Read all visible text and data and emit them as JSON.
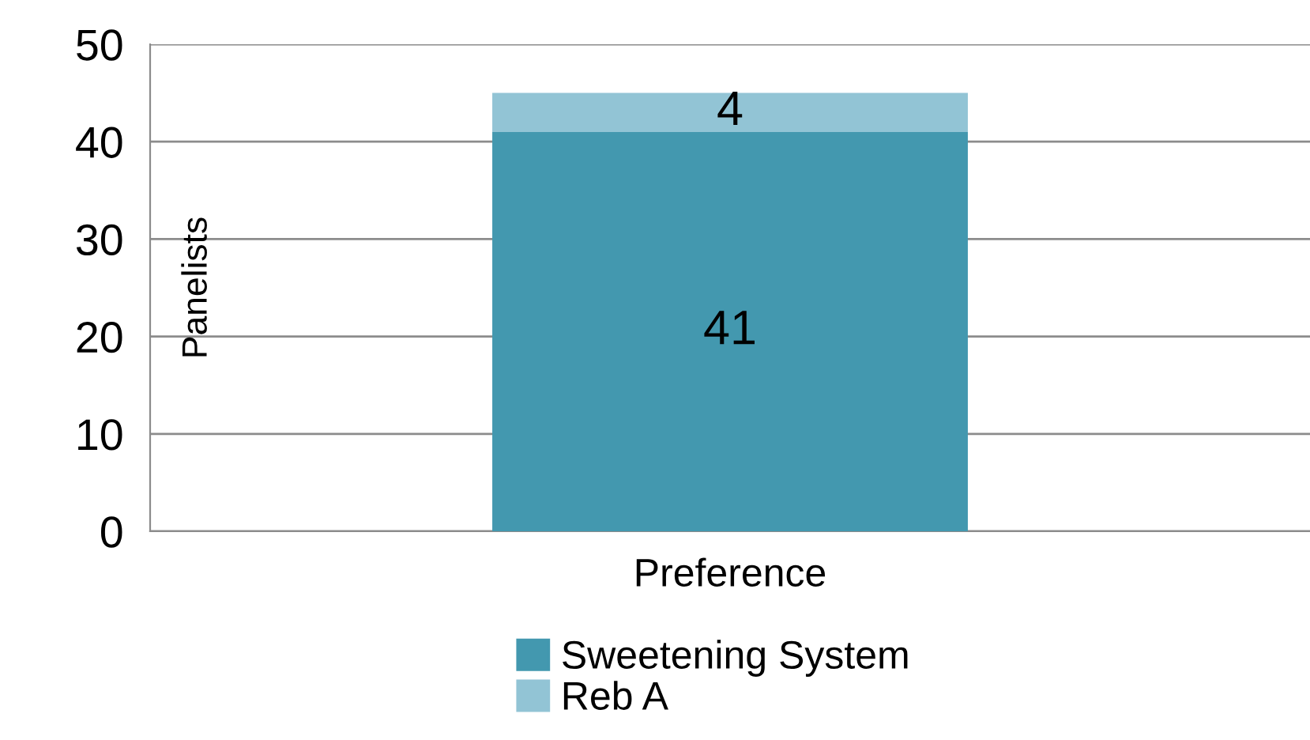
{
  "chart_data": {
    "type": "bar",
    "stacked": true,
    "categories": [
      "Preference"
    ],
    "ylabel": "Panelists",
    "series": [
      {
        "name": "Sweetening System",
        "color": "#4398af",
        "values": [
          41
        ]
      },
      {
        "name": "Reb A",
        "color": "#92c4d5",
        "values": [
          4
        ]
      }
    ],
    "ylim": [
      0,
      50
    ],
    "yticks": [
      0,
      10,
      20,
      30,
      40,
      50
    ],
    "grid": "y",
    "legend": "bottom",
    "data_labels": true
  }
}
